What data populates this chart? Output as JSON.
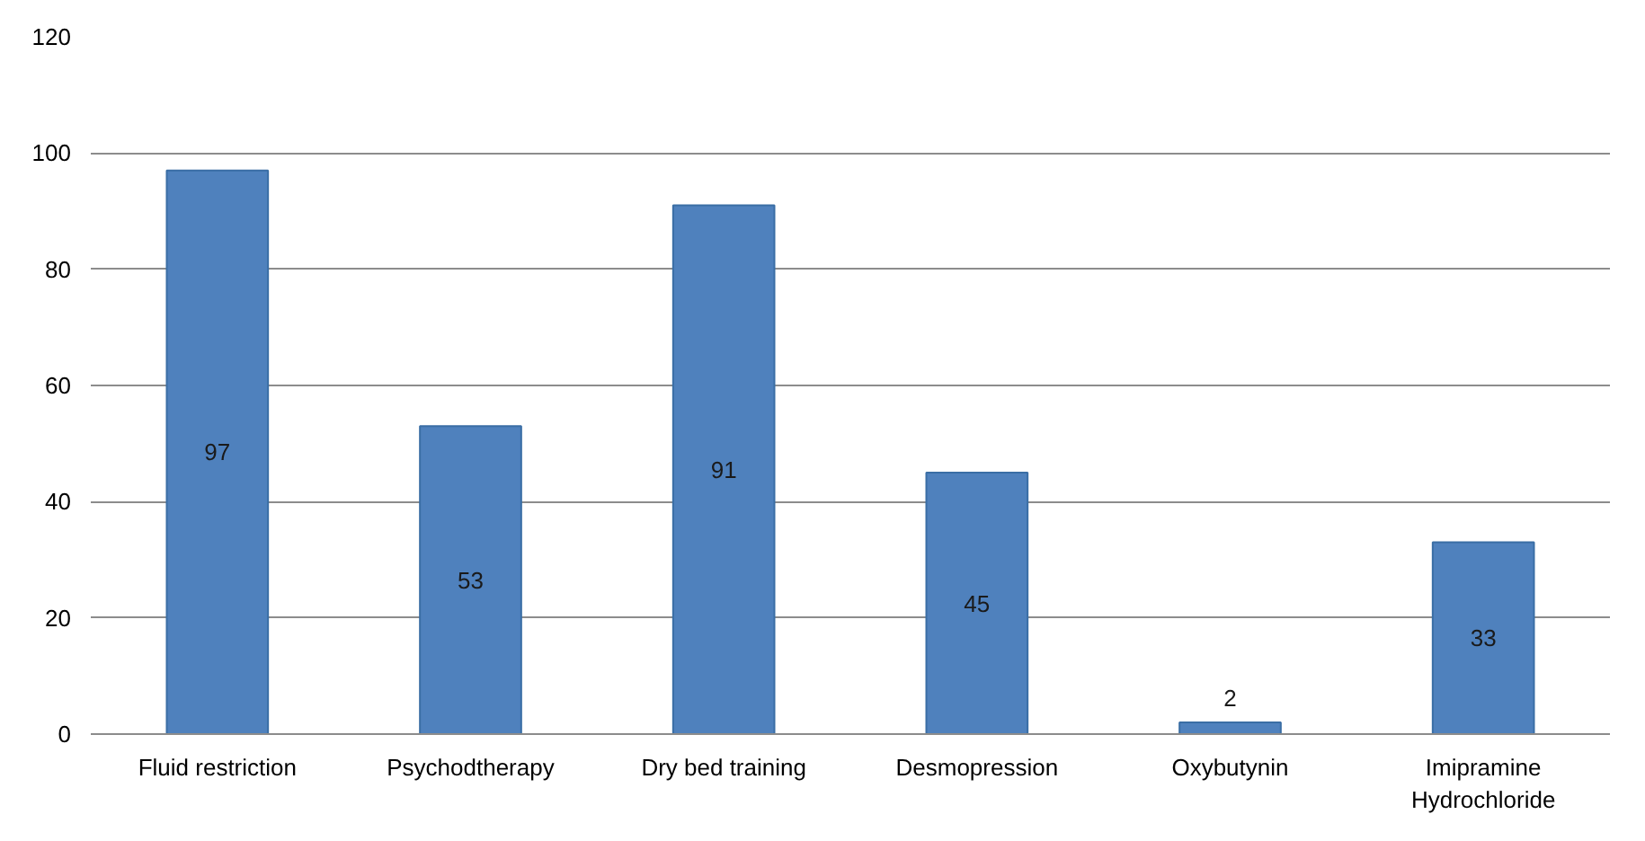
{
  "chart_data": {
    "type": "bar",
    "categories": [
      "Fluid restriction",
      "Psychodtherapy",
      "Dry bed training",
      "Desmopression",
      "Oxybutynin",
      "Imipramine Hydrochloride"
    ],
    "values": [
      97,
      53,
      91,
      45,
      2,
      33
    ],
    "color": "#4f81bd",
    "ylim": [
      0,
      120
    ],
    "yticks": [
      0,
      20,
      40,
      60,
      80,
      100,
      120
    ],
    "grid": "y",
    "data_labels": true
  }
}
